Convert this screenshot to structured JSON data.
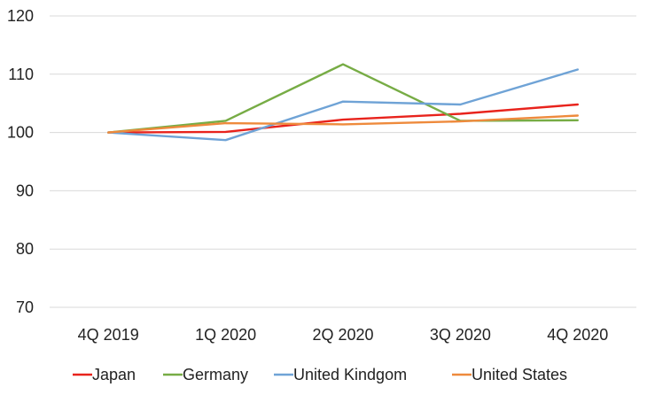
{
  "chart_data": {
    "type": "line",
    "title": "",
    "xlabel": "",
    "ylabel": "",
    "categories": [
      "4Q 2019",
      "1Q 2020",
      "2Q 2020",
      "3Q 2020",
      "4Q 2020"
    ],
    "ylim": [
      70,
      120
    ],
    "yticks": [
      70,
      80,
      90,
      100,
      110,
      120
    ],
    "grid": "horizontal",
    "legend_position": "bottom",
    "series": [
      {
        "name": "Japan",
        "color": "#e8231c",
        "values": [
          100,
          100.1,
          102.2,
          103.2,
          104.8
        ]
      },
      {
        "name": "Germany",
        "color": "#77ac45",
        "values": [
          100,
          102,
          111.7,
          102,
          102.1
        ]
      },
      {
        "name": "United Kindgom",
        "color": "#6fa3d6",
        "values": [
          100,
          98.7,
          105.3,
          104.8,
          110.8
        ]
      },
      {
        "name": "United States",
        "color": "#ee8a3c",
        "values": [
          100,
          101.6,
          101.4,
          101.9,
          102.9
        ]
      }
    ]
  }
}
